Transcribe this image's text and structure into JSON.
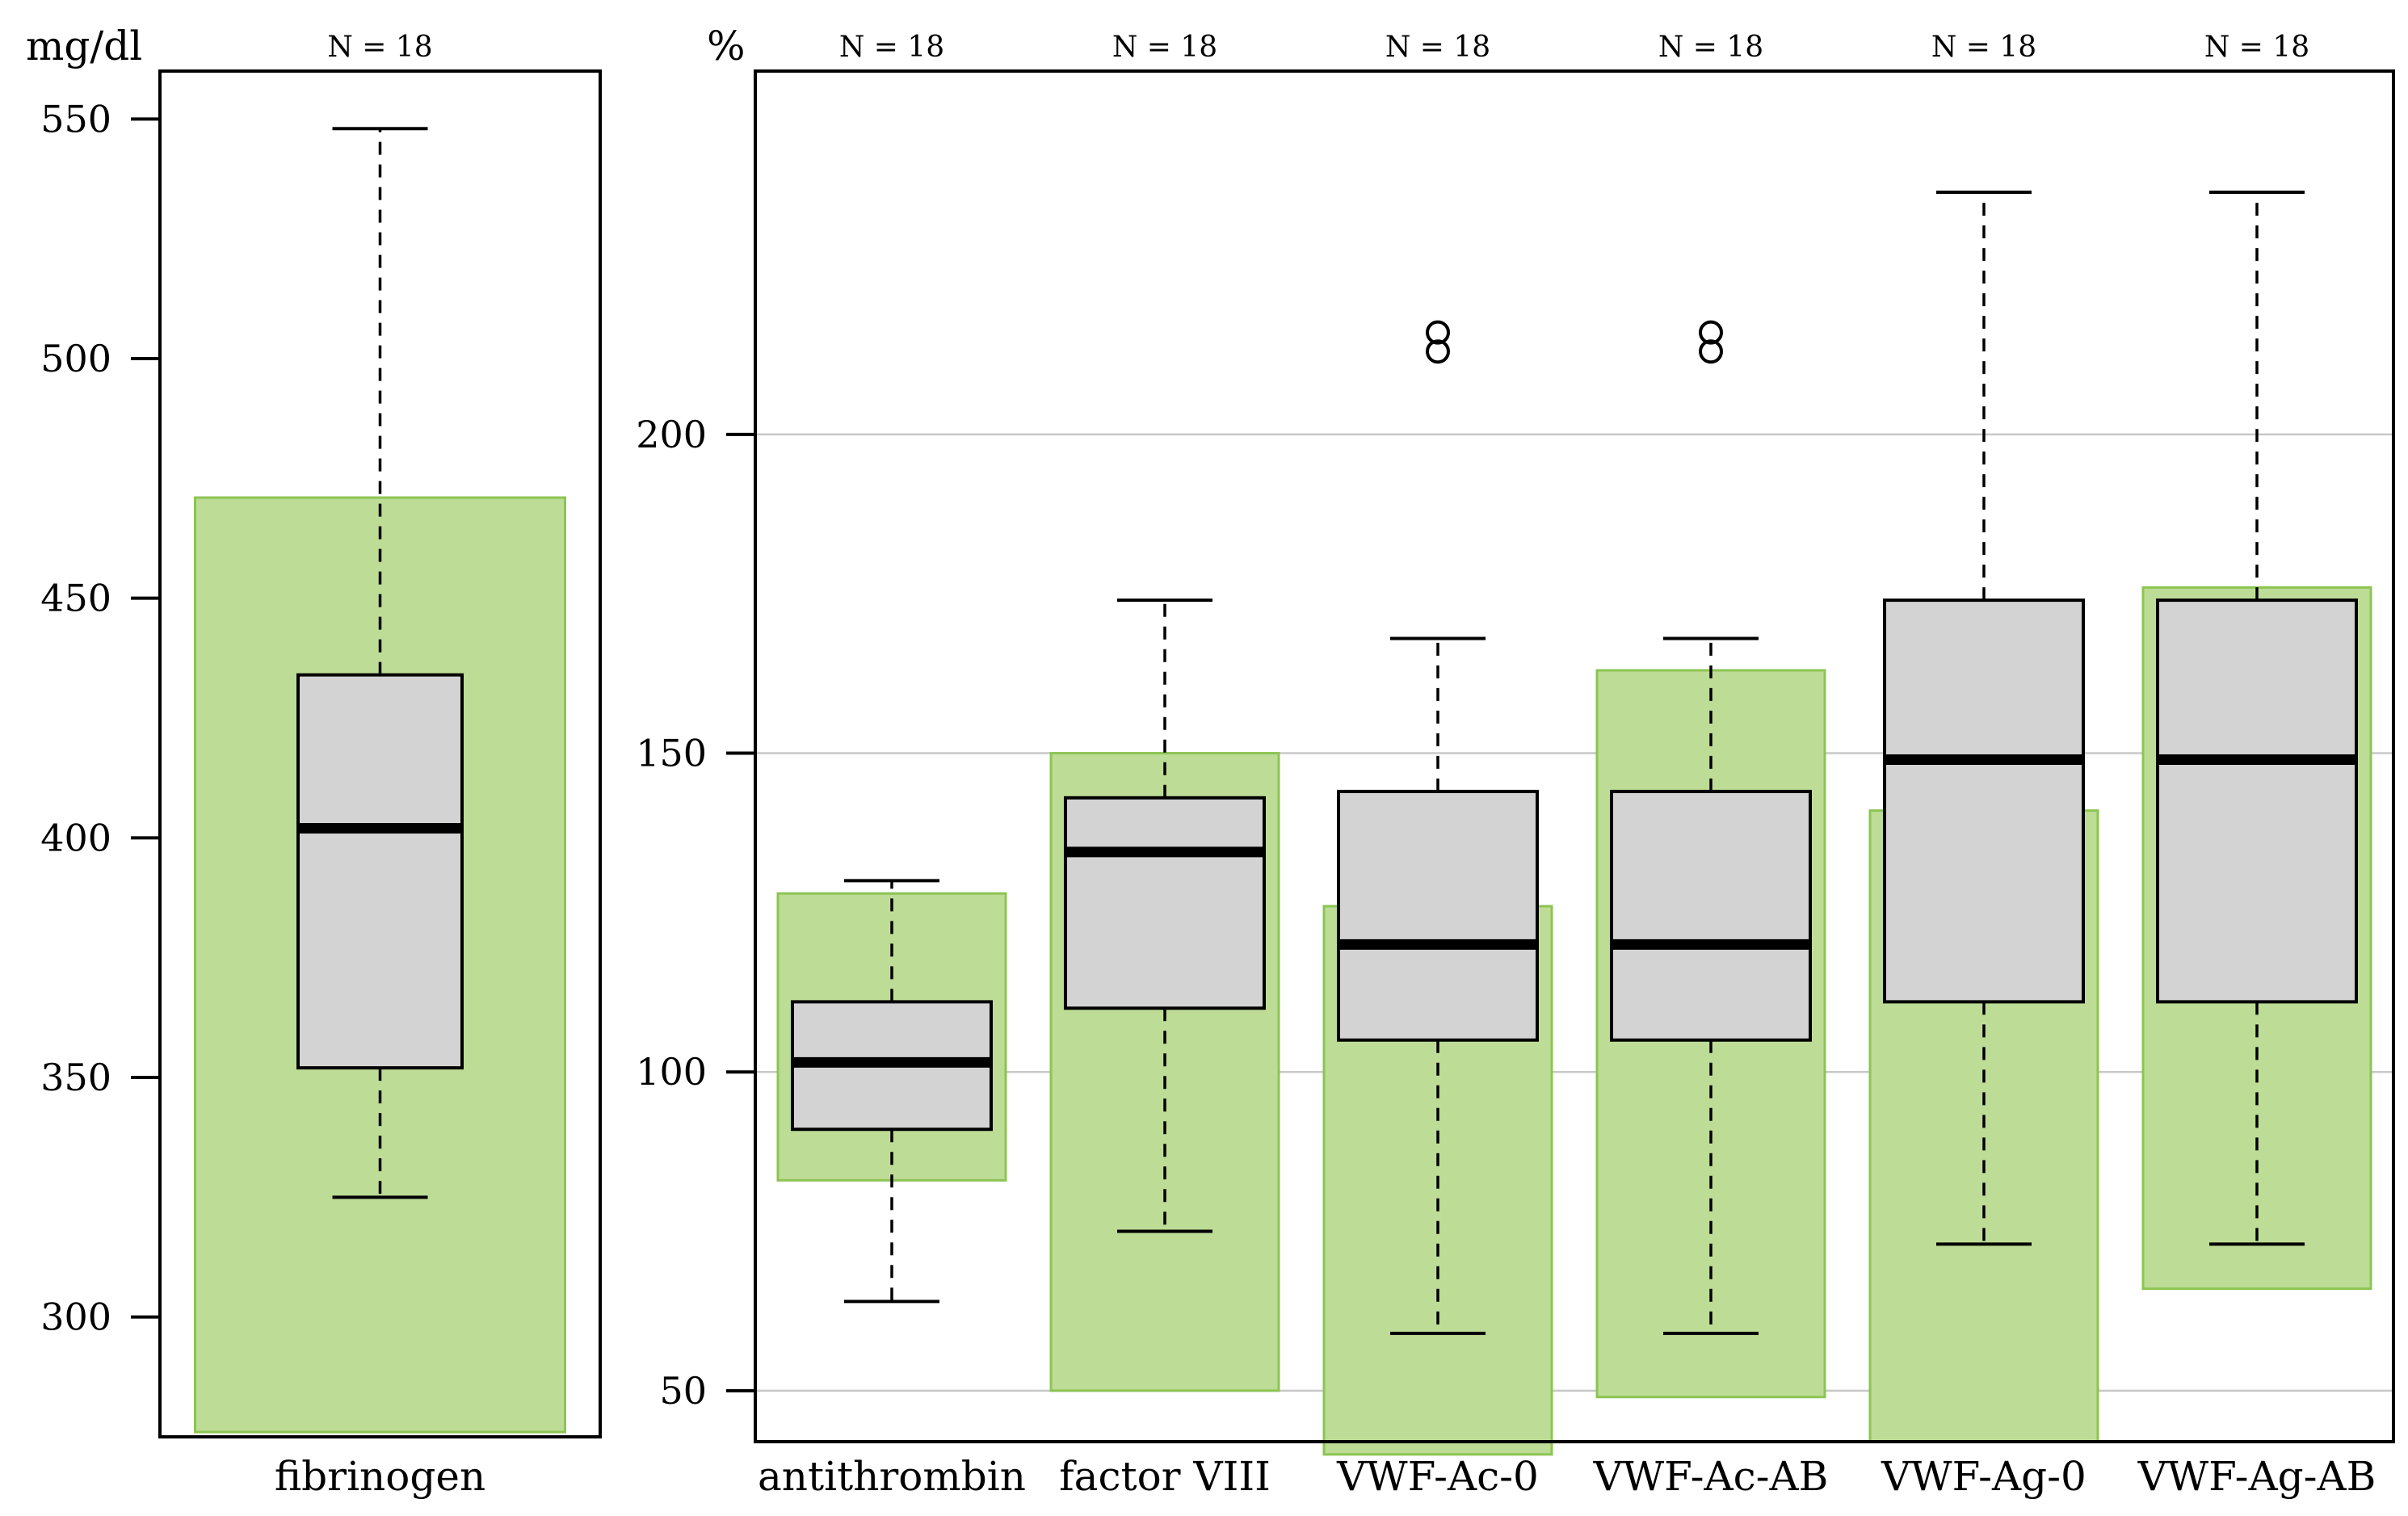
{
  "chart_data": [
    {
      "type": "boxplot",
      "unit": "mg/dl",
      "ylim": [
        275,
        560
      ],
      "yticks": [
        300,
        350,
        400,
        450,
        500,
        550
      ],
      "grid": false,
      "colors": {
        "box": "#d3d3d3",
        "reference": "#bddc96",
        "reference_edge": "#8dc453"
      },
      "categories": [
        "fibrinogen"
      ],
      "n_labels": [
        "N = 18"
      ],
      "boxes": [
        {
          "name": "fibrinogen",
          "whisker_low": 325,
          "q1": 352,
          "median": 402,
          "q3": 434,
          "whisker_high": 548,
          "outliers": [],
          "ref_low": 276,
          "ref_high": 471
        }
      ]
    },
    {
      "type": "boxplot",
      "unit": "%",
      "ylim": [
        42,
        257
      ],
      "yticks": [
        50,
        100,
        150,
        200
      ],
      "grid": true,
      "colors": {
        "box": "#d3d3d3",
        "reference": "#bddc96",
        "reference_edge": "#8dc453"
      },
      "categories": [
        "antithrombin",
        "factor VIII",
        "VWF-Ac-0",
        "VWF-Ac-AB",
        "VWF-Ag-0",
        "VWF-Ag-AB"
      ],
      "n_labels": [
        "N = 18",
        "N = 18",
        "N = 18",
        "N = 18",
        "N = 18",
        "N = 18"
      ],
      "boxes": [
        {
          "name": "antithrombin",
          "whisker_low": 64,
          "q1": 91,
          "median": 101.5,
          "q3": 111,
          "whisker_high": 130,
          "outliers": [],
          "ref_low": 83,
          "ref_high": 128
        },
        {
          "name": "factor VIII",
          "whisker_low": 75,
          "q1": 110,
          "median": 134.5,
          "q3": 143,
          "whisker_high": 174,
          "outliers": [],
          "ref_low": 50,
          "ref_high": 150
        },
        {
          "name": "VWF-Ac-0",
          "whisker_low": 59,
          "q1": 105,
          "median": 120,
          "q3": 144,
          "whisker_high": 168,
          "outliers": [
            213,
            216
          ],
          "ref_low": 40,
          "ref_high": 126
        },
        {
          "name": "VWF-Ac-AB",
          "whisker_low": 59,
          "q1": 105,
          "median": 120,
          "q3": 144,
          "whisker_high": 168,
          "outliers": [
            213,
            216
          ],
          "ref_low": 49,
          "ref_high": 163
        },
        {
          "name": "VWF-Ag-0",
          "whisker_low": 73,
          "q1": 111,
          "median": 149,
          "q3": 174,
          "whisker_high": 238,
          "outliers": [],
          "ref_low": 42,
          "ref_high": 141
        },
        {
          "name": "VWF-Ag-AB",
          "whisker_low": 73,
          "q1": 111,
          "median": 149,
          "q3": 174,
          "whisker_high": 238,
          "outliers": [],
          "ref_low": 66,
          "ref_high": 176
        }
      ]
    }
  ]
}
